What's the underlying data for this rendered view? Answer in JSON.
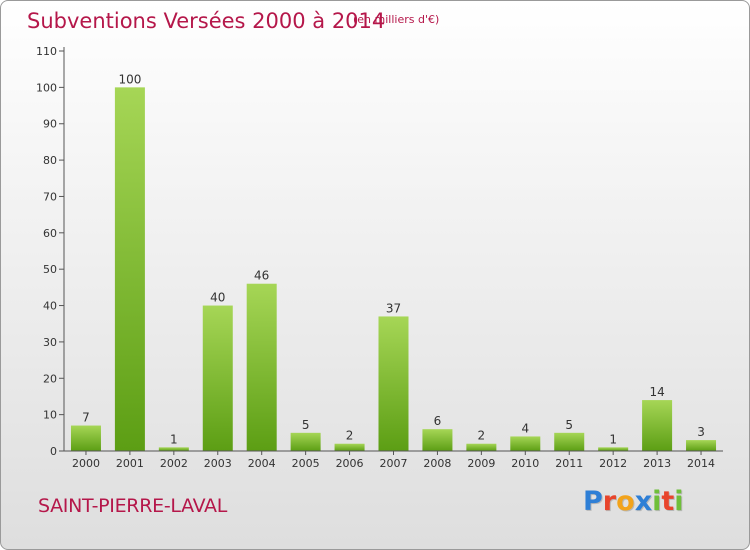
{
  "title": "Subventions Versées 2000 à 2014",
  "unit_note": "(en milliers d'€)",
  "commune": "SAINT-PIERRE-LAVAL",
  "logo": {
    "text": "Proxiti",
    "letters": [
      {
        "char": "P",
        "color": "#2e7fd6"
      },
      {
        "char": "r",
        "color": "#e8452c"
      },
      {
        "char": "o",
        "color": "#f2a31b"
      },
      {
        "char": "x",
        "color": "#2e7fd6"
      },
      {
        "char": "i",
        "color": "#6fbf3a"
      },
      {
        "char": "t",
        "color": "#e8452c"
      },
      {
        "char": "i",
        "color": "#6fbf3a"
      }
    ]
  },
  "colors": {
    "accent": "#b5174a",
    "bar_top": "#a6d656",
    "bar_bottom": "#5c9e14",
    "axis": "#555555",
    "grid": "#cccccc"
  },
  "chart_data": {
    "type": "bar",
    "title": "Subventions Versées 2000 à 2014",
    "xlabel": "",
    "ylabel": "",
    "categories": [
      "2000",
      "2001",
      "2002",
      "2003",
      "2004",
      "2005",
      "2006",
      "2007",
      "2008",
      "2009",
      "2010",
      "2011",
      "2012",
      "2013",
      "2014"
    ],
    "values": [
      7,
      100,
      1,
      40,
      46,
      5,
      2,
      37,
      6,
      2,
      4,
      5,
      1,
      14,
      3
    ],
    "ylim": [
      0,
      110
    ],
    "yticks": [
      0,
      10,
      20,
      30,
      40,
      50,
      60,
      70,
      80,
      90,
      100,
      110
    ],
    "grid": false,
    "legend": "none",
    "data_labels": true
  }
}
